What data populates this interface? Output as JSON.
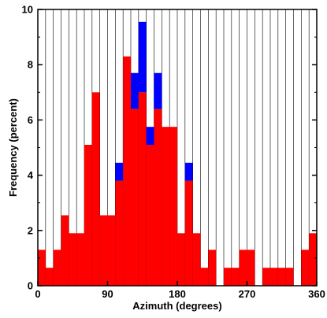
{
  "chart_data": {
    "type": "bar",
    "stacked": true,
    "xlabel": "Azimuth (degrees)",
    "ylabel": "Frequency (percent)",
    "xlim": [
      0,
      360
    ],
    "ylim": [
      0,
      10
    ],
    "bin_width": 10,
    "x_ticks": [
      "0",
      "90",
      "180",
      "270",
      "360"
    ],
    "y_ticks": [
      "0",
      "2",
      "4",
      "6",
      "8",
      "10"
    ],
    "grid": "vertical lines at every 10 degrees",
    "bin_starts": [
      0,
      10,
      20,
      30,
      40,
      50,
      60,
      70,
      80,
      90,
      100,
      110,
      120,
      130,
      140,
      150,
      160,
      170,
      180,
      190,
      200,
      210,
      220,
      230,
      240,
      250,
      260,
      270,
      280,
      290,
      300,
      310,
      320,
      330,
      340,
      350
    ],
    "series": [
      {
        "color": "#ff0000",
        "values": [
          1.3,
          0.65,
          1.3,
          2.55,
          1.9,
          1.9,
          5.1,
          7.0,
          2.55,
          2.55,
          3.8,
          8.3,
          6.4,
          7.0,
          5.1,
          6.4,
          5.75,
          5.75,
          1.9,
          3.8,
          1.9,
          0.65,
          1.3,
          0,
          0.65,
          0.65,
          1.3,
          1.3,
          0,
          0.65,
          0.65,
          0.65,
          0.65,
          0,
          1.3,
          1.9
        ]
      },
      {
        "color": "#0000ff",
        "values": [
          0,
          0,
          0,
          0,
          0,
          0,
          0,
          0,
          0,
          0,
          0.65,
          0,
          1.3,
          2.55,
          0.65,
          1.3,
          0,
          0,
          0,
          0.65,
          0,
          0,
          0,
          0,
          0,
          0,
          0,
          0,
          0,
          0,
          0,
          0,
          0,
          0,
          0,
          0
        ]
      }
    ]
  }
}
